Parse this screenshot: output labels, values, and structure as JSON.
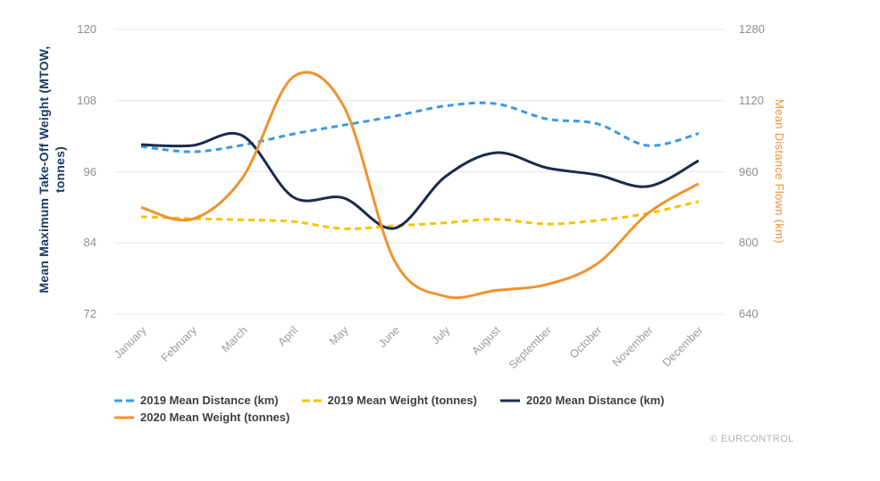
{
  "chart_data": {
    "type": "line",
    "title": "",
    "categories": [
      "January",
      "February",
      "March",
      "April",
      "May",
      "June",
      "July",
      "August",
      "September",
      "October",
      "November",
      "December"
    ],
    "left_axis": {
      "title": "Mean Maximum Take-Off Weight (MTOW, tonnes)",
      "ticks": [
        120,
        108,
        96,
        84,
        72
      ],
      "min": 72,
      "max": 120,
      "color": "#1c3a64"
    },
    "right_axis": {
      "title": "Mean Distance Flown (km)",
      "ticks": [
        1280,
        1120,
        960,
        800,
        640
      ],
      "min": 640,
      "max": 1280,
      "color": "#f0922f"
    },
    "grid": true,
    "legend_position": "bottom",
    "series": [
      {
        "name": "2019 Mean Distance (km)",
        "axis": "right",
        "color": "#3c99e8",
        "dash": "7,5",
        "values": [
          1017,
          1005,
          1020,
          1045,
          1065,
          1085,
          1108,
          1113,
          1079,
          1068,
          1019,
          1046
        ]
      },
      {
        "name": "2019 Mean Weight (tonnes)",
        "axis": "left",
        "color": "#f5c400",
        "dash": "7,5",
        "values": [
          88.4,
          88.1,
          87.9,
          87.6,
          86.4,
          86.9,
          87.4,
          88.0,
          87.2,
          87.8,
          89.0,
          91.0
        ]
      },
      {
        "name": "2020 Mean Distance (km)",
        "axis": "right",
        "color": "#1b2b4a",
        "dash": "",
        "values": [
          1021,
          1019,
          1041,
          903,
          901,
          833,
          949,
          1003,
          969,
          953,
          927,
          985
        ]
      },
      {
        "name": "2020 Mean Weight (tonnes)",
        "axis": "left",
        "color": "#f0922f",
        "dash": "",
        "values": [
          90,
          88,
          95,
          112,
          107,
          81,
          75,
          76,
          77,
          80.5,
          89,
          94
        ]
      }
    ]
  },
  "footer": {
    "copyright": "© EURCONTROL"
  }
}
